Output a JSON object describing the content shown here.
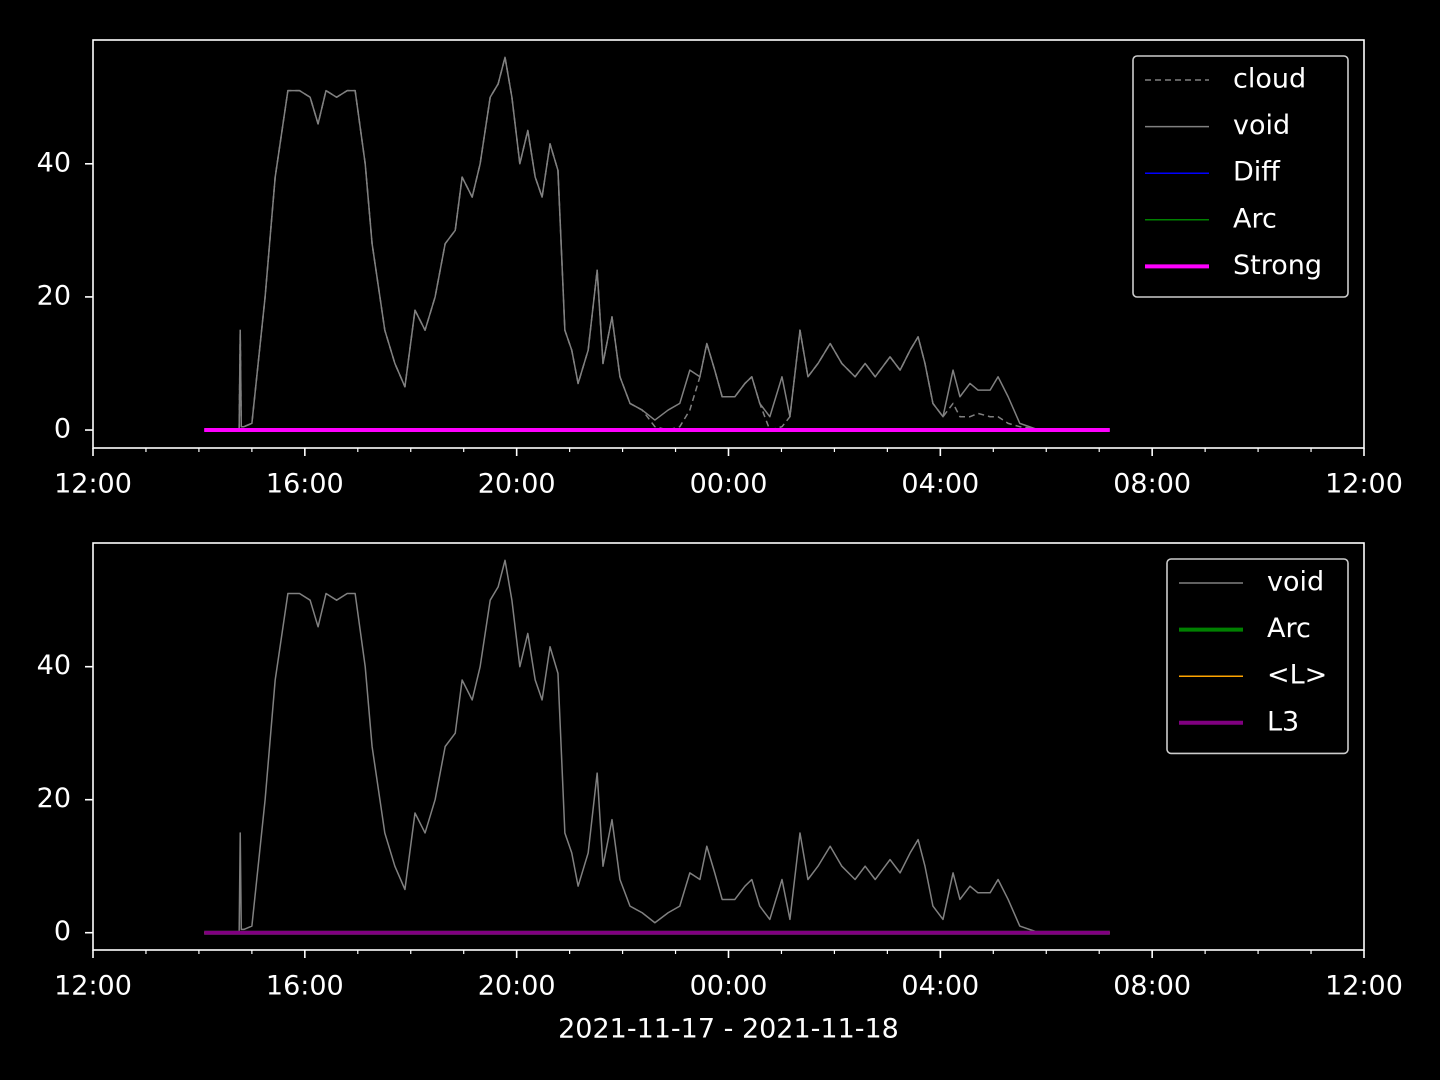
{
  "chart_data": [
    {
      "type": "line",
      "xlim": [
        0,
        24
      ],
      "ylim": [
        -2.7,
        58.6
      ],
      "xticks": [
        {
          "value": 0,
          "label": "12:00"
        },
        {
          "value": 4,
          "label": "16:00"
        },
        {
          "value": 8,
          "label": "20:00"
        },
        {
          "value": 12,
          "label": "00:00"
        },
        {
          "value": 16,
          "label": "04:00"
        },
        {
          "value": 20,
          "label": "08:00"
        },
        {
          "value": 24,
          "label": "12:00"
        }
      ],
      "xminorticks": [
        1,
        2,
        3,
        5,
        6,
        7,
        9,
        10,
        11,
        13,
        14,
        15,
        17,
        18,
        19,
        21,
        22,
        23
      ],
      "yticks": [
        0,
        20,
        40
      ],
      "legend": "upper right",
      "series": [
        {
          "name": "cloud",
          "color": "#808080",
          "dash": true,
          "linewidth": 1.5,
          "x": [
            2.76,
            2.78,
            2.8,
            2.85,
            3.0,
            3.25,
            3.44,
            3.68,
            3.9,
            4.1,
            4.25,
            4.4,
            4.6,
            4.8,
            4.95,
            5.14,
            5.27,
            5.51,
            5.7,
            5.89,
            6.08,
            6.27,
            6.46,
            6.65,
            6.84,
            6.97,
            7.16,
            7.31,
            7.5,
            7.65,
            7.78,
            7.91,
            8.06,
            8.21,
            8.35,
            8.48,
            8.63,
            8.78,
            8.91,
            9.04,
            9.16,
            9.35,
            9.52,
            9.63,
            9.8,
            9.95,
            10.14,
            10.37,
            10.61,
            10.86,
            11.08,
            11.27,
            11.46,
            11.59,
            11.74,
            11.88,
            12.12,
            12.31,
            12.44,
            12.59,
            12.78,
            13.01,
            13.16,
            13.35,
            13.5,
            13.69,
            13.92,
            14.14,
            14.39,
            14.58,
            14.77,
            15.05,
            15.24,
            15.43,
            15.58,
            15.71,
            15.86,
            16.05,
            16.24,
            16.37,
            16.56,
            16.71,
            16.94,
            17.09,
            17.28,
            17.5,
            17.79
          ],
          "values": [
            0,
            15,
            0.5,
            0.5,
            1,
            20,
            38,
            51,
            51,
            50,
            46,
            51,
            50,
            51,
            51,
            40,
            28,
            15,
            10,
            6.5,
            18,
            15,
            20,
            28,
            30,
            38,
            35,
            40,
            50,
            52,
            56,
            50,
            40,
            45,
            38,
            35,
            43,
            39,
            15,
            12,
            7,
            12,
            24,
            10,
            17,
            8,
            4,
            3,
            0.5,
            0,
            0.5,
            3,
            8,
            13,
            9,
            5,
            5,
            7,
            8,
            4,
            0,
            0.5,
            2,
            15,
            8,
            10,
            13,
            10,
            8,
            10,
            8,
            11,
            9,
            12,
            14,
            10,
            4,
            2,
            4,
            2,
            2,
            2.5,
            2,
            2,
            1,
            0.5,
            0.2
          ]
        },
        {
          "name": "void",
          "color": "#808080",
          "dash": false,
          "linewidth": 1.5,
          "x": [
            2.76,
            2.78,
            2.8,
            2.85,
            3.0,
            3.25,
            3.44,
            3.68,
            3.9,
            4.1,
            4.25,
            4.4,
            4.6,
            4.8,
            4.95,
            5.14,
            5.27,
            5.51,
            5.7,
            5.89,
            6.08,
            6.27,
            6.46,
            6.65,
            6.84,
            6.97,
            7.16,
            7.31,
            7.5,
            7.65,
            7.78,
            7.91,
            8.06,
            8.21,
            8.35,
            8.48,
            8.63,
            8.78,
            8.91,
            9.04,
            9.16,
            9.35,
            9.52,
            9.63,
            9.8,
            9.95,
            10.14,
            10.37,
            10.61,
            10.86,
            11.08,
            11.27,
            11.46,
            11.59,
            11.74,
            11.88,
            12.12,
            12.31,
            12.44,
            12.59,
            12.78,
            13.01,
            13.16,
            13.35,
            13.5,
            13.69,
            13.92,
            14.14,
            14.39,
            14.58,
            14.77,
            15.05,
            15.24,
            15.43,
            15.58,
            15.71,
            15.86,
            16.05,
            16.24,
            16.37,
            16.56,
            16.71,
            16.94,
            17.09,
            17.28,
            17.5,
            17.79
          ],
          "values": [
            0,
            15,
            0.5,
            0.5,
            1,
            20,
            38,
            51,
            51,
            50,
            46,
            51,
            50,
            51,
            51,
            40,
            28,
            15,
            10,
            6.5,
            18,
            15,
            20,
            28,
            30,
            38,
            35,
            40,
            50,
            52,
            56,
            50,
            40,
            45,
            38,
            35,
            43,
            39,
            15,
            12,
            7,
            12,
            24,
            10,
            17,
            8,
            4,
            3,
            1.5,
            3,
            4,
            9,
            8,
            13,
            9,
            5,
            5,
            7,
            8,
            4,
            2,
            8,
            2,
            15,
            8,
            10,
            13,
            10,
            8,
            10,
            8,
            11,
            9,
            12,
            14,
            10,
            4,
            2,
            9,
            5,
            7,
            6,
            6,
            8,
            5,
            1,
            0.2
          ]
        },
        {
          "name": "Diff",
          "color": "#0000ff",
          "dash": false,
          "linewidth": 1.5,
          "x": [
            2.1,
            19.2
          ],
          "values": [
            0,
            0
          ]
        },
        {
          "name": "Arc",
          "color": "#008000",
          "dash": false,
          "linewidth": 1.5,
          "x": [
            2.1,
            19.2
          ],
          "values": [
            0,
            0
          ]
        },
        {
          "name": "Strong",
          "color": "#ff00ff",
          "dash": false,
          "linewidth": 4,
          "x": [
            2.1,
            19.2
          ],
          "values": [
            0,
            0
          ]
        }
      ]
    },
    {
      "type": "line",
      "xlim": [
        0,
        24
      ],
      "ylim": [
        -2.6,
        58.6
      ],
      "xticks": [
        {
          "value": 0,
          "label": "12:00"
        },
        {
          "value": 4,
          "label": "16:00"
        },
        {
          "value": 8,
          "label": "20:00"
        },
        {
          "value": 12,
          "label": "00:00"
        },
        {
          "value": 16,
          "label": "04:00"
        },
        {
          "value": 20,
          "label": "08:00"
        },
        {
          "value": 24,
          "label": "12:00"
        }
      ],
      "xminorticks": [
        1,
        2,
        3,
        5,
        6,
        7,
        9,
        10,
        11,
        13,
        14,
        15,
        17,
        18,
        19,
        21,
        22,
        23
      ],
      "yticks": [
        0,
        20,
        40
      ],
      "xlabel": "2021-11-17 - 2021-11-18",
      "legend": "upper right",
      "series": [
        {
          "name": "void",
          "color": "#808080",
          "dash": false,
          "linewidth": 1.5,
          "x": [
            2.76,
            2.78,
            2.8,
            2.85,
            3.0,
            3.25,
            3.44,
            3.68,
            3.9,
            4.1,
            4.25,
            4.4,
            4.6,
            4.8,
            4.95,
            5.14,
            5.27,
            5.51,
            5.7,
            5.89,
            6.08,
            6.27,
            6.46,
            6.65,
            6.84,
            6.97,
            7.16,
            7.31,
            7.5,
            7.65,
            7.78,
            7.91,
            8.06,
            8.21,
            8.35,
            8.48,
            8.63,
            8.78,
            8.91,
            9.04,
            9.16,
            9.35,
            9.52,
            9.63,
            9.8,
            9.95,
            10.14,
            10.37,
            10.61,
            10.86,
            11.08,
            11.27,
            11.46,
            11.59,
            11.74,
            11.88,
            12.12,
            12.31,
            12.44,
            12.59,
            12.78,
            13.01,
            13.16,
            13.35,
            13.5,
            13.69,
            13.92,
            14.14,
            14.39,
            14.58,
            14.77,
            15.05,
            15.24,
            15.43,
            15.58,
            15.71,
            15.86,
            16.05,
            16.24,
            16.37,
            16.56,
            16.71,
            16.94,
            17.09,
            17.28,
            17.5,
            17.79
          ],
          "values": [
            0,
            15,
            0.5,
            0.5,
            1,
            20,
            38,
            51,
            51,
            50,
            46,
            51,
            50,
            51,
            51,
            40,
            28,
            15,
            10,
            6.5,
            18,
            15,
            20,
            28,
            30,
            38,
            35,
            40,
            50,
            52,
            56,
            50,
            40,
            45,
            38,
            35,
            43,
            39,
            15,
            12,
            7,
            12,
            24,
            10,
            17,
            8,
            4,
            3,
            1.5,
            3,
            4,
            9,
            8,
            13,
            9,
            5,
            5,
            7,
            8,
            4,
            2,
            8,
            2,
            15,
            8,
            10,
            13,
            10,
            8,
            10,
            8,
            11,
            9,
            12,
            14,
            10,
            4,
            2,
            9,
            5,
            7,
            6,
            6,
            8,
            5,
            1,
            0.2
          ]
        },
        {
          "name": "Arc",
          "color": "#008000",
          "dash": false,
          "linewidth": 4,
          "x": [
            2.1,
            19.2
          ],
          "values": [
            0,
            0
          ]
        },
        {
          "name": "<L>",
          "color": "#ffa500",
          "dash": false,
          "linewidth": 1.5,
          "x": [
            2.1,
            19.2
          ],
          "values": [
            0,
            0
          ]
        },
        {
          "name": "L3",
          "color": "#800080",
          "dash": false,
          "linewidth": 4,
          "x": [
            2.1,
            19.2
          ],
          "values": [
            0,
            0
          ]
        }
      ]
    }
  ]
}
